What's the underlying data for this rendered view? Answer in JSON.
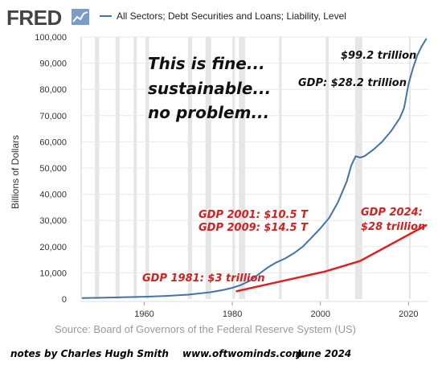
{
  "brand": {
    "name": "FRED",
    "logo_icon": "line-graph-icon"
  },
  "legend": {
    "series_name": "All Sectors; Debt Securities and Loans; Liability, Level",
    "swatch_color": "#4572a7"
  },
  "source": "Source: Board of Governors of the Federal Reserve System (US)",
  "notes": {
    "author": "notes by Charles Hugh Smith",
    "site": "www.oftwominds.com",
    "date": "June 2024"
  },
  "annotations": {
    "headline": [
      "This is fine...",
      "sustainable...",
      "no problem..."
    ],
    "debt_2024": "$99.2 trillion",
    "gdp_2024_black": "GDP: $28.2 trillion",
    "gdp_1981": "GDP 1981: $3 trillion",
    "gdp_2001": "GDP 2001: $10.5 T",
    "gdp_2009": "GDP 2009: $14.5 T",
    "gdp_2024_red_1": "GDP 2024:",
    "gdp_2024_red_2": "$28 trillion"
  },
  "chart_data": {
    "type": "line",
    "title": "",
    "xlabel": "",
    "ylabel": "Billions of Dollars",
    "xlim": [
      1945.5,
      2024.5
    ],
    "ylim": [
      0,
      100000
    ],
    "xticks": [
      1960,
      1980,
      2000,
      2020
    ],
    "yticks": [
      0,
      10000,
      20000,
      30000,
      40000,
      50000,
      60000,
      70000,
      80000,
      90000,
      100000
    ],
    "ytick_labels": [
      "0",
      "10,000",
      "20,000",
      "30,000",
      "40,000",
      "50,000",
      "60,000",
      "70,000",
      "80,000",
      "90,000",
      "100,000"
    ],
    "grid": "horizontal",
    "recessions": [
      [
        1945.5,
        1945.8
      ],
      [
        1948.8,
        1949.8
      ],
      [
        1953.5,
        1954.4
      ],
      [
        1957.6,
        1958.3
      ],
      [
        1960.3,
        1961.1
      ],
      [
        1969.9,
        1970.9
      ],
      [
        1973.9,
        1975.2
      ],
      [
        1980.0,
        1980.6
      ],
      [
        1981.5,
        1982.9
      ],
      [
        1990.6,
        1991.2
      ],
      [
        2001.2,
        2001.9
      ],
      [
        2007.9,
        2009.5
      ],
      [
        2020.1,
        2020.4
      ]
    ],
    "series": [
      {
        "name": "All Sectors; Debt Securities and Loans; Liability, Level",
        "color": "#4572a7",
        "x": [
          1946,
          1950,
          1955,
          1960,
          1965,
          1970,
          1975,
          1978,
          1980,
          1982,
          1984,
          1986,
          1988,
          1990,
          1992,
          1994,
          1996,
          1998,
          2000,
          2002,
          2004,
          2006,
          2007,
          2008,
          2009,
          2010,
          2012,
          2014,
          2016,
          2018,
          2019,
          2020,
          2021,
          2022,
          2023,
          2024
        ],
        "values": [
          400,
          500,
          700,
          900,
          1200,
          1700,
          2600,
          3500,
          4300,
          5400,
          7000,
          9500,
          12000,
          14000,
          15500,
          17500,
          20000,
          23500,
          27000,
          31000,
          37000,
          45000,
          51000,
          54500,
          54000,
          54500,
          57000,
          60000,
          64000,
          69000,
          73000,
          82000,
          88000,
          93000,
          96500,
          99200
        ]
      },
      {
        "name": "",
        "color": "#e02020",
        "x": [
          1981,
          2001,
          2009,
          2024
        ],
        "values": [
          3000,
          10500,
          14500,
          28200
        ]
      }
    ]
  }
}
